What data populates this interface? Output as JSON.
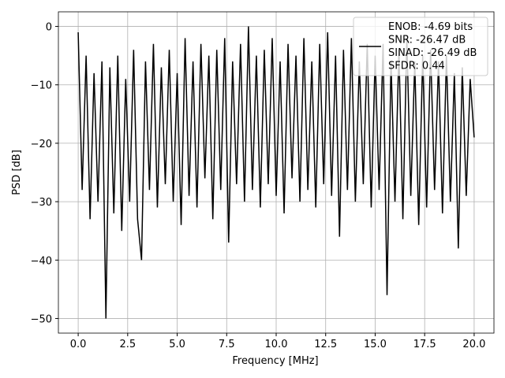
{
  "chart_data": {
    "type": "line",
    "xlabel": "Frequency [MHz]",
    "ylabel": "PSD [dB]",
    "x": [
      0,
      0.2,
      0.4,
      0.6,
      0.8,
      1,
      1.2,
      1.4,
      1.6,
      1.8,
      2,
      2.2,
      2.4,
      2.6,
      2.8,
      3,
      3.2,
      3.4,
      3.6,
      3.8,
      4,
      4.2,
      4.4,
      4.6,
      4.8,
      5,
      5.2,
      5.4,
      5.6,
      5.8,
      6,
      6.2,
      6.4,
      6.6,
      6.8,
      7,
      7.2,
      7.4,
      7.6,
      7.8,
      8,
      8.2,
      8.4,
      8.6,
      8.8,
      9,
      9.2,
      9.4,
      9.6,
      9.8,
      10,
      10.2,
      10.4,
      10.6,
      10.8,
      11,
      11.2,
      11.4,
      11.6,
      11.8,
      12,
      12.2,
      12.4,
      12.6,
      12.8,
      13,
      13.2,
      13.4,
      13.6,
      13.8,
      14,
      14.2,
      14.4,
      14.6,
      14.8,
      15,
      15.2,
      15.4,
      15.6,
      15.8,
      16,
      16.2,
      16.4,
      16.6,
      16.8,
      17,
      17.2,
      17.4,
      17.6,
      17.8,
      18,
      18.2,
      18.4,
      18.6,
      18.8,
      19,
      19.2,
      19.4,
      19.6,
      19.8,
      20
    ],
    "series": [
      {
        "name": "ENOB: -4.69 bits\nSNR: -26.47 dB\nSINAD: -26.49 dB\nSFDR: 0.44",
        "color": "#000000",
        "values": [
          -1,
          -28,
          -5,
          -33,
          -8,
          -30,
          -6,
          -50,
          -7,
          -32,
          -5,
          -35,
          -9,
          -30,
          -4,
          -33,
          -40,
          -6,
          -28,
          -3,
          -31,
          -7,
          -27,
          -4,
          -30,
          -8,
          -34,
          -2,
          -29,
          -6,
          -31,
          -3,
          -26,
          -5,
          -33,
          -4,
          -28,
          -2,
          -37,
          -6,
          -27,
          -3,
          -30,
          0,
          -28,
          -5,
          -31,
          -4,
          -27,
          -2,
          -29,
          -6,
          -32,
          -3,
          -26,
          -5,
          -30,
          -2,
          -28,
          -6,
          -31,
          -3,
          -27,
          -1,
          -29,
          -5,
          -36,
          -4,
          -28,
          -2,
          -30,
          -6,
          -27,
          -3,
          -31,
          -5,
          -28,
          -3,
          -46,
          -6,
          -30,
          -4,
          -33,
          -2,
          -29,
          -6,
          -34,
          -5,
          -31,
          -4,
          -28,
          -6,
          -32,
          -5,
          -30,
          -8,
          -38,
          -7,
          -29,
          -9,
          -19
        ]
      }
    ],
    "xlim": [
      -1,
      21
    ],
    "ylim": [
      -52.5,
      2.5
    ],
    "xticks": [
      {
        "value": 0,
        "label": "0.0"
      },
      2.5,
      {
        "value": 5,
        "label": "5.0"
      },
      7.5,
      {
        "value": 10,
        "label": "10.0"
      },
      12.5,
      {
        "value": 15,
        "label": "15.0"
      },
      17.5,
      {
        "value": 20,
        "label": "20.0"
      }
    ],
    "yticks": [
      {
        "value": -50,
        "label": "−50"
      },
      {
        "value": -40,
        "label": "−40"
      },
      {
        "value": -30,
        "label": "−30"
      },
      {
        "value": -20,
        "label": "−20"
      },
      {
        "value": -10,
        "label": "−10"
      },
      0
    ],
    "grid": true,
    "legend": "upper right"
  }
}
